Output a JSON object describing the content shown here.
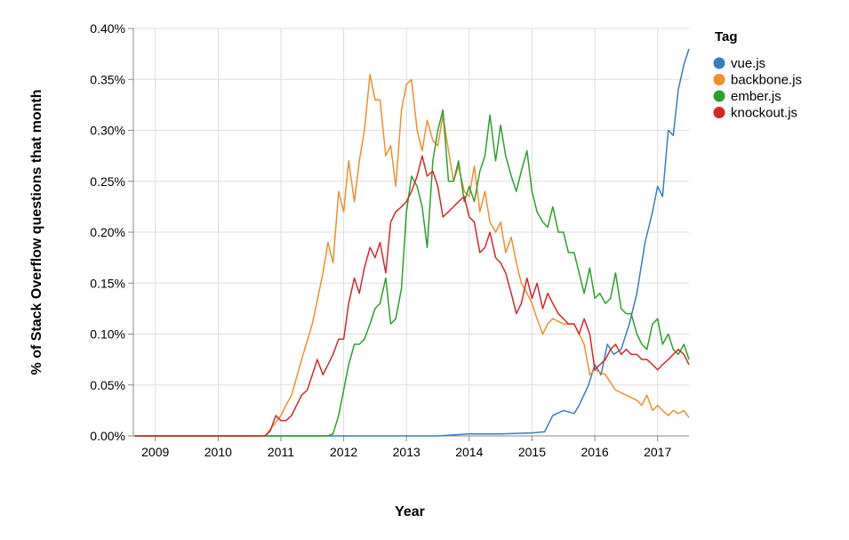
{
  "chart_data": {
    "type": "line",
    "title": "",
    "xlabel": "Year",
    "ylabel": "% of Stack Overflow questions that month",
    "x_ticks": [
      "2009",
      "2010",
      "2011",
      "2012",
      "2013",
      "2014",
      "2015",
      "2016",
      "2017"
    ],
    "y_ticks": [
      "0.00%",
      "0.05%",
      "0.10%",
      "0.15%",
      "0.20%",
      "0.25%",
      "0.30%",
      "0.35%",
      "0.40%"
    ],
    "xlim": [
      2008.65,
      2017.5
    ],
    "ylim": [
      0,
      0.4
    ],
    "y_unit": "%",
    "grid": true,
    "legend": {
      "title": "Tag",
      "placement": "top-right"
    },
    "series": [
      {
        "name": "vue.js",
        "color": "#3a7cc0",
        "points": [
          [
            2008.67,
            0
          ],
          [
            2013.5,
            0
          ],
          [
            2014.0,
            0.002
          ],
          [
            2014.5,
            0.002
          ],
          [
            2015.0,
            0.003
          ],
          [
            2015.2,
            0.004
          ],
          [
            2015.33,
            0.02
          ],
          [
            2015.5,
            0.025
          ],
          [
            2015.67,
            0.022
          ],
          [
            2015.75,
            0.03
          ],
          [
            2015.9,
            0.05
          ],
          [
            2016.0,
            0.07
          ],
          [
            2016.1,
            0.06
          ],
          [
            2016.2,
            0.09
          ],
          [
            2016.3,
            0.08
          ],
          [
            2016.42,
            0.085
          ],
          [
            2016.55,
            0.11
          ],
          [
            2016.67,
            0.14
          ],
          [
            2016.8,
            0.19
          ],
          [
            2016.92,
            0.22
          ],
          [
            2017.0,
            0.245
          ],
          [
            2017.08,
            0.235
          ],
          [
            2017.17,
            0.3
          ],
          [
            2017.25,
            0.295
          ],
          [
            2017.33,
            0.34
          ],
          [
            2017.42,
            0.365
          ],
          [
            2017.5,
            0.38
          ]
        ]
      },
      {
        "name": "backbone.js",
        "color": "#f28e2b",
        "points": [
          [
            2008.67,
            0
          ],
          [
            2010.75,
            0
          ],
          [
            2010.9,
            0.012
          ],
          [
            2011.0,
            0.02
          ],
          [
            2011.08,
            0.03
          ],
          [
            2011.17,
            0.04
          ],
          [
            2011.33,
            0.075
          ],
          [
            2011.5,
            0.11
          ],
          [
            2011.67,
            0.16
          ],
          [
            2011.75,
            0.19
          ],
          [
            2011.83,
            0.17
          ],
          [
            2011.92,
            0.24
          ],
          [
            2012.0,
            0.22
          ],
          [
            2012.08,
            0.27
          ],
          [
            2012.17,
            0.23
          ],
          [
            2012.25,
            0.27
          ],
          [
            2012.33,
            0.3
          ],
          [
            2012.42,
            0.355
          ],
          [
            2012.5,
            0.33
          ],
          [
            2012.58,
            0.33
          ],
          [
            2012.67,
            0.275
          ],
          [
            2012.75,
            0.285
          ],
          [
            2012.83,
            0.245
          ],
          [
            2012.92,
            0.32
          ],
          [
            2013.0,
            0.345
          ],
          [
            2013.08,
            0.35
          ],
          [
            2013.17,
            0.3
          ],
          [
            2013.25,
            0.28
          ],
          [
            2013.33,
            0.31
          ],
          [
            2013.42,
            0.29
          ],
          [
            2013.5,
            0.285
          ],
          [
            2013.58,
            0.315
          ],
          [
            2013.67,
            0.28
          ],
          [
            2013.75,
            0.25
          ],
          [
            2013.83,
            0.265
          ],
          [
            2013.92,
            0.24
          ],
          [
            2014.0,
            0.235
          ],
          [
            2014.08,
            0.265
          ],
          [
            2014.17,
            0.22
          ],
          [
            2014.25,
            0.24
          ],
          [
            2014.33,
            0.21
          ],
          [
            2014.42,
            0.2
          ],
          [
            2014.5,
            0.21
          ],
          [
            2014.58,
            0.18
          ],
          [
            2014.67,
            0.195
          ],
          [
            2014.75,
            0.17
          ],
          [
            2014.83,
            0.15
          ],
          [
            2014.92,
            0.14
          ],
          [
            2015.0,
            0.13
          ],
          [
            2015.08,
            0.115
          ],
          [
            2015.17,
            0.1
          ],
          [
            2015.25,
            0.11
          ],
          [
            2015.33,
            0.115
          ],
          [
            2015.5,
            0.11
          ],
          [
            2015.67,
            0.11
          ],
          [
            2015.83,
            0.09
          ],
          [
            2015.92,
            0.06
          ],
          [
            2016.0,
            0.065
          ],
          [
            2016.17,
            0.06
          ],
          [
            2016.33,
            0.045
          ],
          [
            2016.5,
            0.04
          ],
          [
            2016.67,
            0.035
          ],
          [
            2016.75,
            0.03
          ],
          [
            2016.83,
            0.04
          ],
          [
            2016.92,
            0.025
          ],
          [
            2017.0,
            0.03
          ],
          [
            2017.08,
            0.025
          ],
          [
            2017.17,
            0.02
          ],
          [
            2017.25,
            0.025
          ],
          [
            2017.33,
            0.022
          ],
          [
            2017.42,
            0.025
          ],
          [
            2017.5,
            0.018
          ]
        ]
      },
      {
        "name": "ember.js",
        "color": "#2ca02c",
        "points": [
          [
            2008.67,
            0
          ],
          [
            2011.75,
            0
          ],
          [
            2011.83,
            0.002
          ],
          [
            2011.92,
            0.02
          ],
          [
            2012.0,
            0.045
          ],
          [
            2012.08,
            0.07
          ],
          [
            2012.17,
            0.09
          ],
          [
            2012.25,
            0.09
          ],
          [
            2012.33,
            0.095
          ],
          [
            2012.42,
            0.11
          ],
          [
            2012.5,
            0.125
          ],
          [
            2012.58,
            0.13
          ],
          [
            2012.67,
            0.155
          ],
          [
            2012.75,
            0.11
          ],
          [
            2012.83,
            0.115
          ],
          [
            2012.92,
            0.145
          ],
          [
            2013.0,
            0.22
          ],
          [
            2013.08,
            0.255
          ],
          [
            2013.17,
            0.245
          ],
          [
            2013.25,
            0.225
          ],
          [
            2013.33,
            0.185
          ],
          [
            2013.42,
            0.27
          ],
          [
            2013.5,
            0.3
          ],
          [
            2013.58,
            0.32
          ],
          [
            2013.67,
            0.25
          ],
          [
            2013.75,
            0.25
          ],
          [
            2013.83,
            0.27
          ],
          [
            2013.92,
            0.23
          ],
          [
            2014.0,
            0.245
          ],
          [
            2014.08,
            0.23
          ],
          [
            2014.17,
            0.26
          ],
          [
            2014.25,
            0.275
          ],
          [
            2014.33,
            0.315
          ],
          [
            2014.42,
            0.27
          ],
          [
            2014.5,
            0.305
          ],
          [
            2014.58,
            0.275
          ],
          [
            2014.67,
            0.255
          ],
          [
            2014.75,
            0.24
          ],
          [
            2014.83,
            0.26
          ],
          [
            2014.92,
            0.28
          ],
          [
            2015.0,
            0.24
          ],
          [
            2015.08,
            0.22
          ],
          [
            2015.17,
            0.21
          ],
          [
            2015.25,
            0.205
          ],
          [
            2015.33,
            0.225
          ],
          [
            2015.42,
            0.2
          ],
          [
            2015.5,
            0.2
          ],
          [
            2015.58,
            0.18
          ],
          [
            2015.67,
            0.18
          ],
          [
            2015.75,
            0.16
          ],
          [
            2015.83,
            0.14
          ],
          [
            2015.92,
            0.165
          ],
          [
            2016.0,
            0.135
          ],
          [
            2016.08,
            0.14
          ],
          [
            2016.17,
            0.13
          ],
          [
            2016.25,
            0.135
          ],
          [
            2016.33,
            0.16
          ],
          [
            2016.42,
            0.125
          ],
          [
            2016.5,
            0.12
          ],
          [
            2016.58,
            0.12
          ],
          [
            2016.67,
            0.1
          ],
          [
            2016.75,
            0.09
          ],
          [
            2016.83,
            0.085
          ],
          [
            2016.92,
            0.11
          ],
          [
            2017.0,
            0.115
          ],
          [
            2017.08,
            0.09
          ],
          [
            2017.17,
            0.1
          ],
          [
            2017.25,
            0.085
          ],
          [
            2017.33,
            0.08
          ],
          [
            2017.42,
            0.09
          ],
          [
            2017.5,
            0.075
          ]
        ]
      },
      {
        "name": "knockout.js",
        "color": "#d62728",
        "points": [
          [
            2008.67,
            0
          ],
          [
            2010.75,
            0
          ],
          [
            2010.83,
            0.005
          ],
          [
            2010.92,
            0.02
          ],
          [
            2011.0,
            0.015
          ],
          [
            2011.08,
            0.015
          ],
          [
            2011.17,
            0.02
          ],
          [
            2011.25,
            0.03
          ],
          [
            2011.33,
            0.04
          ],
          [
            2011.42,
            0.045
          ],
          [
            2011.5,
            0.06
          ],
          [
            2011.58,
            0.075
          ],
          [
            2011.67,
            0.06
          ],
          [
            2011.75,
            0.07
          ],
          [
            2011.83,
            0.08
          ],
          [
            2011.92,
            0.095
          ],
          [
            2012.0,
            0.095
          ],
          [
            2012.08,
            0.13
          ],
          [
            2012.17,
            0.155
          ],
          [
            2012.25,
            0.14
          ],
          [
            2012.33,
            0.165
          ],
          [
            2012.42,
            0.185
          ],
          [
            2012.5,
            0.175
          ],
          [
            2012.58,
            0.19
          ],
          [
            2012.67,
            0.16
          ],
          [
            2012.75,
            0.21
          ],
          [
            2012.83,
            0.22
          ],
          [
            2012.92,
            0.225
          ],
          [
            2013.0,
            0.23
          ],
          [
            2013.08,
            0.24
          ],
          [
            2013.17,
            0.255
          ],
          [
            2013.25,
            0.275
          ],
          [
            2013.33,
            0.255
          ],
          [
            2013.42,
            0.26
          ],
          [
            2013.5,
            0.245
          ],
          [
            2013.58,
            0.215
          ],
          [
            2013.67,
            0.22
          ],
          [
            2013.75,
            0.225
          ],
          [
            2013.83,
            0.23
          ],
          [
            2013.92,
            0.235
          ],
          [
            2014.0,
            0.215
          ],
          [
            2014.08,
            0.21
          ],
          [
            2014.17,
            0.18
          ],
          [
            2014.25,
            0.185
          ],
          [
            2014.33,
            0.2
          ],
          [
            2014.42,
            0.175
          ],
          [
            2014.5,
            0.17
          ],
          [
            2014.58,
            0.16
          ],
          [
            2014.67,
            0.14
          ],
          [
            2014.75,
            0.12
          ],
          [
            2014.83,
            0.13
          ],
          [
            2014.92,
            0.155
          ],
          [
            2015.0,
            0.135
          ],
          [
            2015.08,
            0.15
          ],
          [
            2015.17,
            0.125
          ],
          [
            2015.25,
            0.14
          ],
          [
            2015.33,
            0.13
          ],
          [
            2015.42,
            0.12
          ],
          [
            2015.5,
            0.115
          ],
          [
            2015.58,
            0.11
          ],
          [
            2015.67,
            0.11
          ],
          [
            2015.75,
            0.1
          ],
          [
            2015.83,
            0.115
          ],
          [
            2015.92,
            0.1
          ],
          [
            2016.0,
            0.065
          ],
          [
            2016.08,
            0.07
          ],
          [
            2016.17,
            0.075
          ],
          [
            2016.25,
            0.085
          ],
          [
            2016.33,
            0.09
          ],
          [
            2016.42,
            0.08
          ],
          [
            2016.5,
            0.085
          ],
          [
            2016.58,
            0.08
          ],
          [
            2016.67,
            0.08
          ],
          [
            2016.75,
            0.075
          ],
          [
            2016.83,
            0.075
          ],
          [
            2016.92,
            0.07
          ],
          [
            2017.0,
            0.065
          ],
          [
            2017.08,
            0.07
          ],
          [
            2017.17,
            0.075
          ],
          [
            2017.25,
            0.08
          ],
          [
            2017.33,
            0.085
          ],
          [
            2017.42,
            0.08
          ],
          [
            2017.5,
            0.07
          ]
        ]
      }
    ]
  }
}
